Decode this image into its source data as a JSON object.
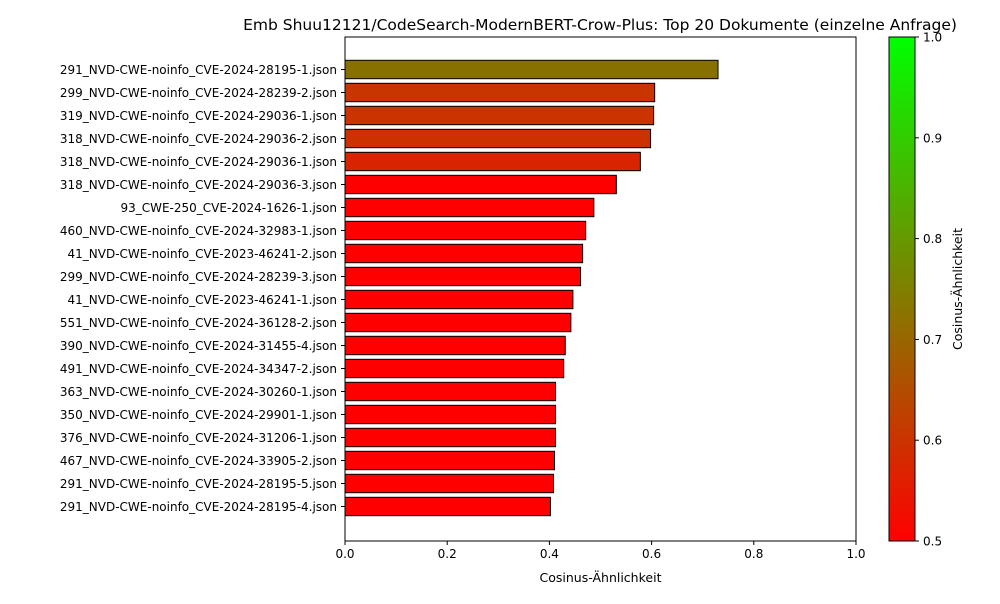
{
  "chart_data": {
    "type": "bar",
    "orientation": "horizontal",
    "title": "Emb Shuu12121/CodeSearch-ModernBERT-Crow-Plus: Top 20 Dokumente (einzelne Anfrage)",
    "xlabel": "Cosinus-Ähnlichkeit",
    "ylabel": "",
    "xlim": [
      0.0,
      1.0
    ],
    "x_ticks": [
      "0.0",
      "0.2",
      "0.4",
      "0.6",
      "0.8",
      "1.0"
    ],
    "x_tick_values": [
      0.0,
      0.2,
      0.4,
      0.6,
      0.8,
      1.0
    ],
    "grid": false,
    "categories": [
      "291_NVD-CWE-noinfo_CVE-2024-28195-1.json",
      "299_NVD-CWE-noinfo_CVE-2024-28239-2.json",
      "319_NVD-CWE-noinfo_CVE-2024-29036-1.json",
      "318_NVD-CWE-noinfo_CVE-2024-29036-2.json",
      "318_NVD-CWE-noinfo_CVE-2024-29036-1.json",
      "318_NVD-CWE-noinfo_CVE-2024-29036-3.json",
      "93_CWE-250_CVE-2024-1626-1.json",
      "460_NVD-CWE-noinfo_CVE-2024-32983-1.json",
      "41_NVD-CWE-noinfo_CVE-2023-46241-2.json",
      "299_NVD-CWE-noinfo_CVE-2024-28239-3.json",
      "41_NVD-CWE-noinfo_CVE-2023-46241-1.json",
      "551_NVD-CWE-noinfo_CVE-2024-36128-2.json",
      "390_NVD-CWE-noinfo_CVE-2024-31455-4.json",
      "491_NVD-CWE-noinfo_CVE-2024-34347-2.json",
      "363_NVD-CWE-noinfo_CVE-2024-30260-1.json",
      "350_NVD-CWE-noinfo_CVE-2024-29901-1.json",
      "376_NVD-CWE-noinfo_CVE-2024-31206-1.json",
      "467_NVD-CWE-noinfo_CVE-2024-33905-2.json",
      "291_NVD-CWE-noinfo_CVE-2024-28195-5.json",
      "291_NVD-CWE-noinfo_CVE-2024-28195-4.json"
    ],
    "values": [
      0.73,
      0.606,
      0.604,
      0.598,
      0.578,
      0.531,
      0.487,
      0.471,
      0.465,
      0.461,
      0.446,
      0.442,
      0.431,
      0.428,
      0.412,
      0.412,
      0.412,
      0.41,
      0.408,
      0.402
    ],
    "bar_colors": [
      "#877000",
      "#c93500",
      "#cb3300",
      "#cd3100",
      "#d82500",
      "#ff0000",
      "#ff0000",
      "#ff0000",
      "#ff0000",
      "#ff0000",
      "#ff0000",
      "#ff0000",
      "#ff0000",
      "#ff0000",
      "#ff0000",
      "#ff0000",
      "#ff0000",
      "#ff0000",
      "#ff0000",
      "#ff0000"
    ],
    "colorbar": {
      "label": "Cosinus-Ähnlichkeit",
      "range": [
        0.5,
        1.0
      ],
      "ticks": [
        "0.5",
        "0.6",
        "0.7",
        "0.8",
        "0.9",
        "1.0"
      ],
      "tick_values": [
        0.5,
        0.6,
        0.7,
        0.8,
        0.9,
        1.0
      ],
      "color_low": "#ff0000",
      "color_high": "#00ff00"
    }
  }
}
